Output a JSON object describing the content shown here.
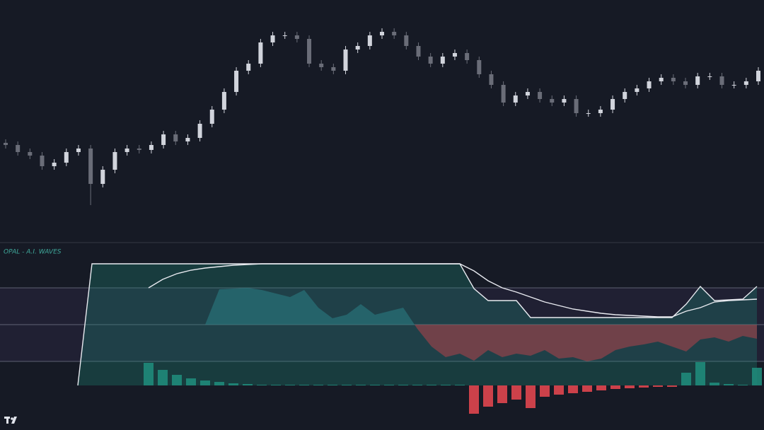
{
  "chart_data": [
    {
      "type": "candlestick",
      "up_color": "#d1d4dc",
      "down_color": "#6a6d78",
      "ylim": [
        0,
        340
      ],
      "open": [
        138,
        135,
        125,
        120,
        105,
        110,
        125,
        130,
        80,
        100,
        125,
        130,
        128,
        135,
        150,
        140,
        145,
        165,
        185,
        210,
        240,
        250,
        280,
        290,
        290,
        285,
        250,
        245,
        240,
        270,
        275,
        290,
        295,
        290,
        275,
        260,
        250,
        260,
        265,
        255,
        235,
        220,
        195,
        205,
        210,
        200,
        195,
        200,
        180,
        180,
        185,
        200,
        210,
        215,
        225,
        230,
        225,
        220,
        232,
        232,
        220,
        220,
        225
      ],
      "high": [
        143,
        140,
        130,
        125,
        115,
        130,
        135,
        135,
        105,
        130,
        135,
        135,
        140,
        155,
        155,
        150,
        170,
        190,
        215,
        245,
        255,
        285,
        295,
        295,
        295,
        290,
        255,
        250,
        275,
        280,
        295,
        300,
        300,
        295,
        280,
        265,
        265,
        270,
        270,
        260,
        240,
        225,
        210,
        215,
        215,
        205,
        205,
        205,
        185,
        190,
        205,
        215,
        220,
        230,
        235,
        235,
        230,
        237,
        237,
        237,
        225,
        230,
        245
      ],
      "low": [
        130,
        120,
        115,
        100,
        100,
        105,
        120,
        50,
        75,
        95,
        120,
        123,
        123,
        130,
        135,
        135,
        140,
        160,
        180,
        205,
        235,
        245,
        275,
        285,
        280,
        245,
        240,
        235,
        235,
        265,
        270,
        285,
        285,
        270,
        255,
        245,
        245,
        255,
        250,
        230,
        215,
        190,
        190,
        200,
        195,
        190,
        190,
        175,
        175,
        175,
        180,
        195,
        205,
        210,
        220,
        220,
        215,
        215,
        227,
        215,
        215,
        215,
        220
      ],
      "close": [
        135,
        125,
        120,
        105,
        110,
        125,
        130,
        80,
        100,
        125,
        130,
        128,
        135,
        150,
        140,
        145,
        165,
        185,
        210,
        240,
        250,
        280,
        290,
        290,
        285,
        250,
        245,
        240,
        270,
        275,
        290,
        295,
        290,
        275,
        260,
        250,
        260,
        265,
        255,
        235,
        220,
        195,
        205,
        210,
        200,
        195,
        200,
        180,
        180,
        185,
        200,
        210,
        215,
        225,
        230,
        225,
        220,
        232,
        232,
        220,
        220,
        225,
        240
      ]
    },
    {
      "type": "combo",
      "title": "OPAL - A.I. WAVES",
      "ylim": [
        -63,
        200
      ],
      "levels": [
        138,
        86,
        34
      ],
      "series": [
        {
          "name": "wave",
          "type": "line",
          "color": "#e8eaf0",
          "fill": "#1f8a7a",
          "values": [
            null,
            null,
            null,
            null,
            null,
            0,
            172,
            172,
            172,
            172,
            172,
            172,
            172,
            172,
            172,
            172,
            172,
            172,
            172,
            172,
            172,
            172,
            172,
            172,
            172,
            172,
            172,
            172,
            172,
            172,
            172,
            172,
            172,
            137,
            120,
            120,
            120,
            96,
            96,
            96,
            96,
            96,
            96,
            96,
            96,
            96,
            96,
            96,
            115,
            140,
            120,
            121,
            122,
            140
          ]
        },
        {
          "name": "signal",
          "type": "line",
          "color": "#e8eaf0",
          "values": [
            null,
            null,
            null,
            null,
            null,
            null,
            null,
            null,
            null,
            null,
            138,
            150,
            158,
            163,
            166,
            168,
            170,
            171,
            172,
            172,
            172,
            172,
            172,
            172,
            172,
            172,
            172,
            172,
            172,
            172,
            172,
            172,
            172,
            162,
            148,
            138,
            132,
            125,
            118,
            113,
            108,
            105,
            102,
            100,
            99,
            98,
            97,
            97,
            105,
            110,
            118,
            120,
            121,
            122
          ]
        },
        {
          "name": "flow",
          "type": "area",
          "color": "#2a7f86",
          "down_color": "#b2414a",
          "base": 86,
          "values": [
            null,
            null,
            null,
            null,
            null,
            null,
            null,
            null,
            null,
            null,
            null,
            null,
            null,
            null,
            86,
            136,
            137,
            138,
            135,
            130,
            125,
            135,
            110,
            95,
            100,
            115,
            100,
            105,
            110,
            80,
            55,
            40,
            45,
            35,
            50,
            40,
            45,
            42,
            50,
            38,
            40,
            34,
            38,
            50,
            55,
            58,
            62,
            55,
            48,
            65,
            68,
            62,
            70,
            66
          ]
        },
        {
          "name": "momentum",
          "type": "bar",
          "color": "#1f8a7a",
          "down_color": "#e0464f",
          "values": [
            null,
            null,
            null,
            null,
            null,
            null,
            null,
            null,
            null,
            null,
            32,
            22,
            15,
            10,
            7,
            5,
            3,
            2,
            1,
            1,
            1,
            1,
            1,
            1,
            1,
            1,
            1,
            1,
            1,
            1,
            1,
            1,
            1,
            -40,
            -30,
            -25,
            -20,
            -32,
            -16,
            -13,
            -11,
            -9,
            -7,
            -5,
            -4,
            -3,
            -2,
            -2,
            18,
            33,
            4,
            2,
            1,
            25
          ]
        }
      ]
    }
  ]
}
